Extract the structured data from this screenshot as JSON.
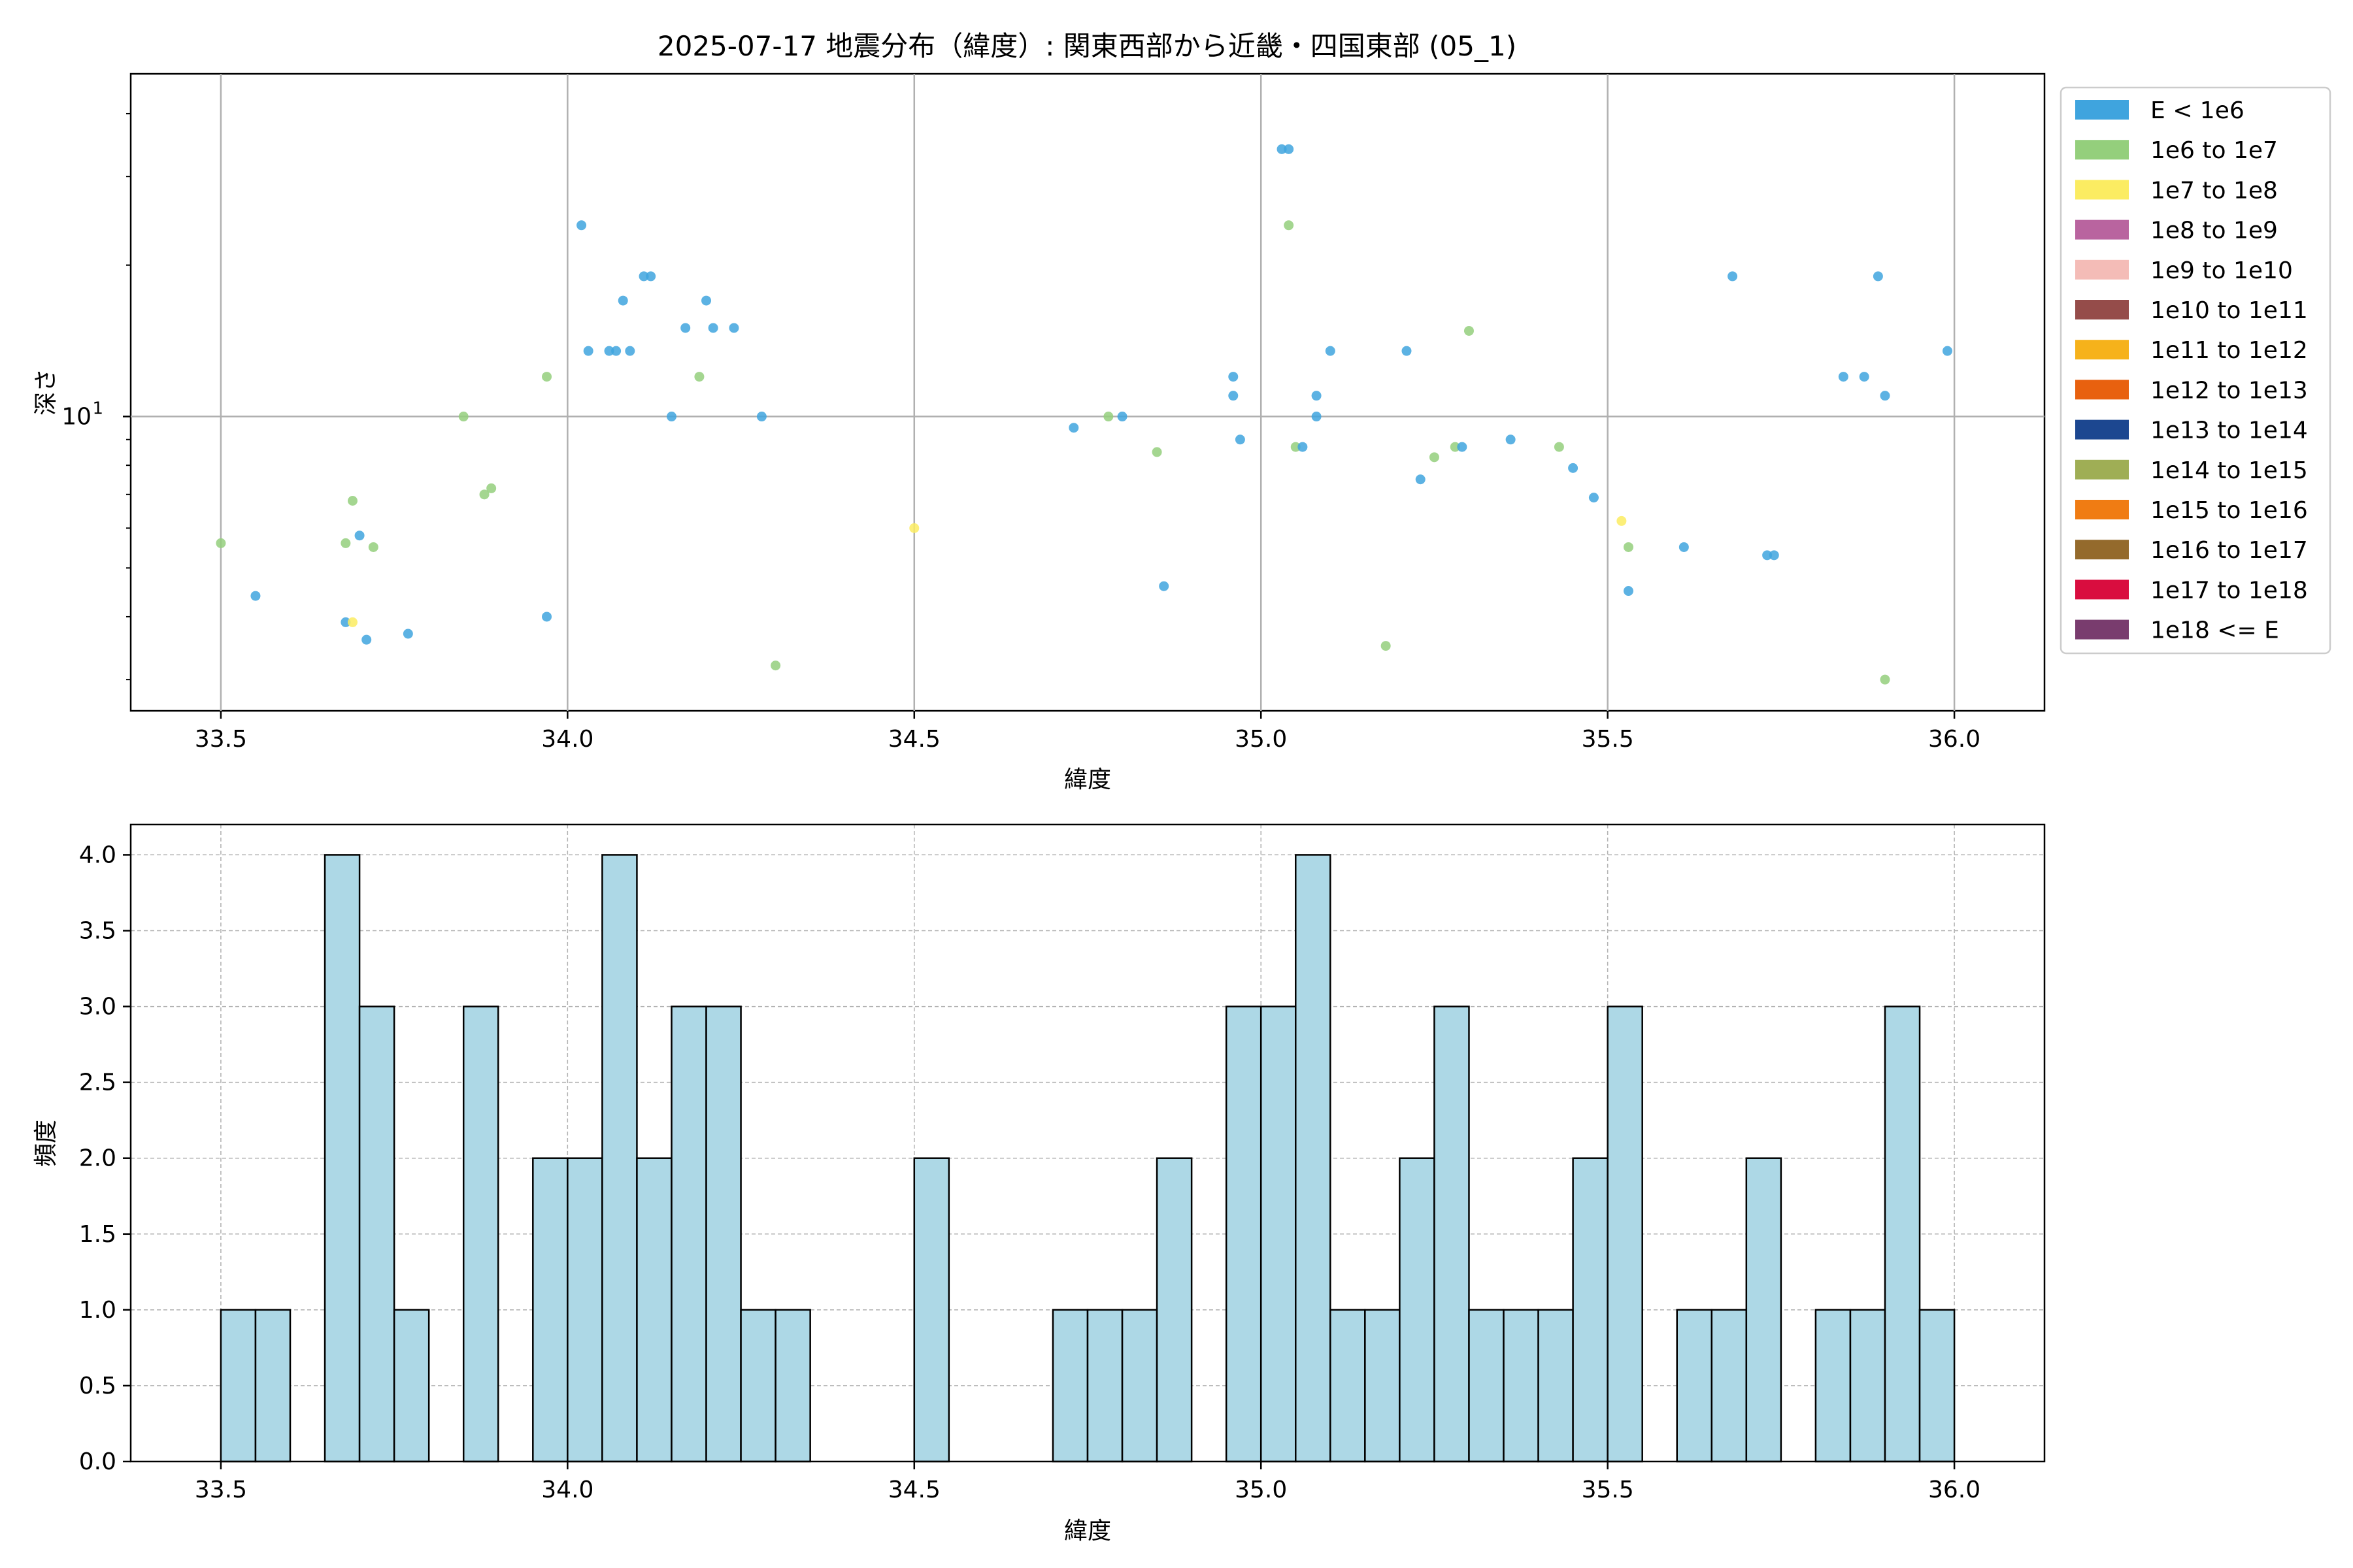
{
  "title": "2025-07-17 地震分布（緯度）: 関東西部から近畿・四国東部 (05_1)",
  "colors": {
    "bin_colors": [
      "#3fa4de",
      "#94cf7c",
      "#fbec62",
      "#b9649f",
      "#f4bcb7",
      "#954c4a",
      "#f6b21b",
      "#e8610f",
      "#1c4790",
      "#9fae55",
      "#f07c13",
      "#946a2c",
      "#d90d3f",
      "#793c6e"
    ],
    "hist_fill": "#add8e6",
    "hist_edge": "#000000",
    "grid": "#b0b0b0"
  },
  "chart_data": [
    {
      "type": "scatter",
      "xlabel": "緯度",
      "ylabel": "深さ",
      "xlim": [
        33.37,
        36.13
      ],
      "ylim": [
        2.6,
        48
      ],
      "yscale": "log",
      "grid": true,
      "x_ticks": [
        "33.5",
        "34.0",
        "34.5",
        "35.0",
        "35.5",
        "36.0"
      ],
      "y_ticks": [
        {
          "value": 10,
          "label": "10",
          "sup": "1"
        }
      ],
      "legend": {
        "placement": "outside-right",
        "entries": [
          "E < 1e6",
          "1e6 to 1e7",
          "1e7 to 1e8",
          "1e8 to 1e9",
          "1e9 to 1e10",
          "1e10 to 1e11",
          "1e11 to 1e12",
          "1e12 to 1e13",
          "1e13 to 1e14",
          "1e14 to 1e15",
          "1e15 to 1e16",
          "1e16 to 1e17",
          "1e17 to 1e18",
          "1e18 <= E"
        ]
      },
      "points": [
        {
          "x": 33.5,
          "y": 5.6,
          "bin": 1
        },
        {
          "x": 33.55,
          "y": 4.4,
          "bin": 0
        },
        {
          "x": 33.68,
          "y": 3.9,
          "bin": 0
        },
        {
          "x": 33.69,
          "y": 3.9,
          "bin": 2
        },
        {
          "x": 33.68,
          "y": 5.6,
          "bin": 1
        },
        {
          "x": 33.69,
          "y": 6.8,
          "bin": 1
        },
        {
          "x": 33.7,
          "y": 5.8,
          "bin": 0
        },
        {
          "x": 33.71,
          "y": 3.6,
          "bin": 0
        },
        {
          "x": 33.72,
          "y": 5.5,
          "bin": 1
        },
        {
          "x": 33.77,
          "y": 3.7,
          "bin": 0
        },
        {
          "x": 33.85,
          "y": 10,
          "bin": 1
        },
        {
          "x": 33.88,
          "y": 7.0,
          "bin": 1
        },
        {
          "x": 33.89,
          "y": 7.2,
          "bin": 1
        },
        {
          "x": 33.97,
          "y": 4.0,
          "bin": 0
        },
        {
          "x": 33.97,
          "y": 12,
          "bin": 1
        },
        {
          "x": 34.02,
          "y": 24,
          "bin": 0
        },
        {
          "x": 34.03,
          "y": 13.5,
          "bin": 0
        },
        {
          "x": 34.06,
          "y": 13.5,
          "bin": 0
        },
        {
          "x": 34.07,
          "y": 13.5,
          "bin": 0
        },
        {
          "x": 34.08,
          "y": 17,
          "bin": 0
        },
        {
          "x": 34.09,
          "y": 13.5,
          "bin": 0
        },
        {
          "x": 34.11,
          "y": 19,
          "bin": 0
        },
        {
          "x": 34.12,
          "y": 19,
          "bin": 0
        },
        {
          "x": 34.15,
          "y": 10,
          "bin": 0
        },
        {
          "x": 34.17,
          "y": 15,
          "bin": 0
        },
        {
          "x": 34.19,
          "y": 12,
          "bin": 1
        },
        {
          "x": 34.2,
          "y": 17,
          "bin": 0
        },
        {
          "x": 34.21,
          "y": 15,
          "bin": 0
        },
        {
          "x": 34.24,
          "y": 15,
          "bin": 0
        },
        {
          "x": 34.28,
          "y": 10,
          "bin": 0
        },
        {
          "x": 34.3,
          "y": 3.2,
          "bin": 1
        },
        {
          "x": 34.5,
          "y": 6.0,
          "bin": 2
        },
        {
          "x": 34.73,
          "y": 9.5,
          "bin": 0
        },
        {
          "x": 34.78,
          "y": 10,
          "bin": 1
        },
        {
          "x": 34.8,
          "y": 10,
          "bin": 0
        },
        {
          "x": 34.85,
          "y": 8.5,
          "bin": 1
        },
        {
          "x": 34.86,
          "y": 4.6,
          "bin": 0
        },
        {
          "x": 34.96,
          "y": 11,
          "bin": 0
        },
        {
          "x": 34.96,
          "y": 12,
          "bin": 0
        },
        {
          "x": 34.97,
          "y": 9,
          "bin": 0
        },
        {
          "x": 35.03,
          "y": 34,
          "bin": 0
        },
        {
          "x": 35.04,
          "y": 34,
          "bin": 0
        },
        {
          "x": 35.04,
          "y": 24,
          "bin": 1
        },
        {
          "x": 35.05,
          "y": 8.7,
          "bin": 1
        },
        {
          "x": 35.06,
          "y": 8.7,
          "bin": 0
        },
        {
          "x": 35.08,
          "y": 11,
          "bin": 0
        },
        {
          "x": 35.08,
          "y": 10,
          "bin": 0
        },
        {
          "x": 35.1,
          "y": 13.5,
          "bin": 0
        },
        {
          "x": 35.18,
          "y": 3.5,
          "bin": 1
        },
        {
          "x": 35.21,
          "y": 13.5,
          "bin": 0
        },
        {
          "x": 35.23,
          "y": 7.5,
          "bin": 0
        },
        {
          "x": 35.25,
          "y": 8.3,
          "bin": 1
        },
        {
          "x": 35.28,
          "y": 8.7,
          "bin": 1
        },
        {
          "x": 35.29,
          "y": 8.7,
          "bin": 0
        },
        {
          "x": 35.3,
          "y": 14.8,
          "bin": 1
        },
        {
          "x": 35.36,
          "y": 9,
          "bin": 0
        },
        {
          "x": 35.43,
          "y": 8.7,
          "bin": 1
        },
        {
          "x": 35.45,
          "y": 7.9,
          "bin": 0
        },
        {
          "x": 35.48,
          "y": 6.9,
          "bin": 0
        },
        {
          "x": 35.52,
          "y": 6.2,
          "bin": 2
        },
        {
          "x": 35.53,
          "y": 4.5,
          "bin": 0
        },
        {
          "x": 35.53,
          "y": 5.5,
          "bin": 1
        },
        {
          "x": 35.61,
          "y": 5.5,
          "bin": 0
        },
        {
          "x": 35.68,
          "y": 19,
          "bin": 0
        },
        {
          "x": 35.73,
          "y": 5.3,
          "bin": 0
        },
        {
          "x": 35.74,
          "y": 5.3,
          "bin": 0
        },
        {
          "x": 35.84,
          "y": 12,
          "bin": 0
        },
        {
          "x": 35.87,
          "y": 12,
          "bin": 0
        },
        {
          "x": 35.89,
          "y": 19,
          "bin": 0
        },
        {
          "x": 35.9,
          "y": 3.0,
          "bin": 1
        },
        {
          "x": 35.9,
          "y": 11,
          "bin": 0
        },
        {
          "x": 35.99,
          "y": 13.5,
          "bin": 0
        }
      ]
    },
    {
      "type": "bar",
      "xlabel": "緯度",
      "ylabel": "頻度",
      "xlim": [
        33.37,
        36.13
      ],
      "ylim": [
        0,
        4.2
      ],
      "grid": true,
      "x_ticks": [
        "33.5",
        "34.0",
        "34.5",
        "35.0",
        "35.5",
        "36.0"
      ],
      "y_ticks": [
        "0.0",
        "0.5",
        "1.0",
        "1.5",
        "2.0",
        "2.5",
        "3.0",
        "3.5",
        "4.0"
      ],
      "bins": {
        "start": 33.5,
        "width": 0.05,
        "counts": [
          1,
          1,
          0,
          4,
          3,
          1,
          0,
          3,
          0,
          2,
          2,
          4,
          2,
          3,
          3,
          1,
          1,
          0,
          0,
          0,
          2,
          0,
          0,
          0,
          1,
          1,
          1,
          2,
          0,
          3,
          3,
          4,
          1,
          1,
          2,
          3,
          1,
          1,
          1,
          2,
          3,
          0,
          1,
          1,
          2,
          0,
          1,
          1,
          3,
          1
        ]
      }
    }
  ]
}
